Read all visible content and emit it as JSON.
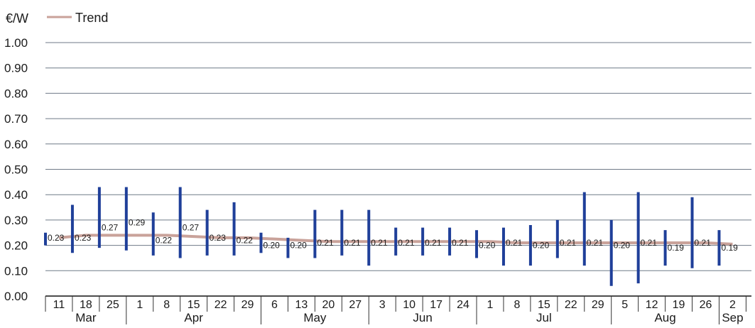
{
  "chart_data": {
    "type": "range-bar-with-trend",
    "ylabel": "€/W",
    "ylim": [
      0,
      1.0
    ],
    "yticks": [
      "0.00",
      "0.10",
      "0.20",
      "0.30",
      "0.40",
      "0.50",
      "0.60",
      "0.70",
      "0.80",
      "0.90",
      "1.00"
    ],
    "grid": true,
    "legend": {
      "placement": "top-left",
      "entries": [
        {
          "label": "Trend",
          "color": "#c9a29a"
        }
      ]
    },
    "x": [
      "11",
      "18",
      "25",
      "1",
      "8",
      "15",
      "22",
      "29",
      "6",
      "13",
      "20",
      "27",
      "3",
      "10",
      "17",
      "24",
      "1",
      "8",
      "15",
      "22",
      "29",
      "5",
      "12",
      "19",
      "26",
      "2"
    ],
    "months": [
      {
        "label": "Mar",
        "start": 0,
        "end": 3
      },
      {
        "label": "Apr",
        "start": 3,
        "end": 8
      },
      {
        "label": "May",
        "start": 8,
        "end": 12
      },
      {
        "label": "Jun",
        "start": 12,
        "end": 16
      },
      {
        "label": "Jul",
        "start": 16,
        "end": 21
      },
      {
        "label": "Aug",
        "start": 21,
        "end": 25
      },
      {
        "label": "Sep",
        "start": 25,
        "end": 26
      }
    ],
    "series": [
      {
        "name": "Trend",
        "values": [
          0.23,
          0.24,
          0.24,
          0.24,
          0.24,
          0.235,
          0.23,
          0.23,
          0.225,
          0.22,
          0.215,
          0.215,
          0.215,
          0.215,
          0.215,
          0.215,
          0.215,
          0.21,
          0.21,
          0.21,
          0.21,
          0.21,
          0.21,
          0.21,
          0.21,
          0.205
        ],
        "color": "#c9a29a"
      },
      {
        "values": [
          0.23,
          0.23,
          0.27,
          0.29,
          0.22,
          0.27,
          0.23,
          0.22,
          0.2,
          0.2,
          0.21,
          0.21,
          0.21,
          0.21,
          0.21,
          0.21,
          0.2,
          0.21,
          0.2,
          0.21,
          0.21,
          0.2,
          0.21,
          0.19,
          0.21,
          0.19
        ],
        "labels": [
          "0.23",
          "0.23",
          "0.27",
          "0.29",
          "0.22",
          "0.27",
          "0.23",
          "0.22",
          "0.20",
          "0.20",
          "0.21",
          "0.21",
          "0.21",
          "0.21",
          "0.21",
          "0.21",
          "0.20",
          "0.21",
          "0.20",
          "0.21",
          "0.21",
          "0.20",
          "0.21",
          "0.19",
          "0.21",
          "0.19"
        ],
        "low": [
          0.2,
          0.17,
          0.19,
          0.18,
          0.16,
          0.15,
          0.16,
          0.16,
          0.17,
          0.15,
          0.15,
          0.16,
          0.12,
          0.16,
          0.16,
          0.16,
          0.15,
          0.12,
          0.12,
          0.15,
          0.12,
          0.04,
          0.05,
          0.12,
          0.11,
          0.12
        ],
        "high": [
          0.25,
          0.36,
          0.43,
          0.43,
          0.33,
          0.43,
          0.34,
          0.37,
          0.25,
          0.23,
          0.34,
          0.34,
          0.34,
          0.27,
          0.27,
          0.27,
          0.26,
          0.27,
          0.28,
          0.3,
          0.41,
          0.3,
          0.41,
          0.26,
          0.39,
          0.26
        ],
        "color": "#1f3f99"
      }
    ]
  }
}
